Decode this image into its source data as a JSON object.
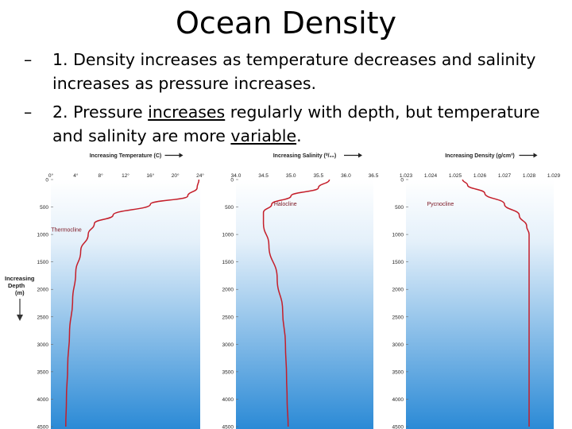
{
  "slide": {
    "title": "Ocean Density",
    "bullet1": {
      "dash": "–",
      "text": "1. Density increases as temperature decreases and salinity increases as pressure increases."
    },
    "bullet2": {
      "dash": "–",
      "part1": "2. Pressure ",
      "underline1": "increases",
      "part2": " regularly with depth, but temperature and salinity are more ",
      "underline2": "variable",
      "part3": "."
    }
  },
  "depth_axis": {
    "label_line1": "Increasing",
    "label_line2": "Depth",
    "label_line3": "(m)"
  },
  "colors": {
    "gradient_top": "#ffffff",
    "gradient_bottom": "#2b8ad6",
    "curve": "#c41e2a"
  },
  "chart_data": [
    {
      "type": "line",
      "title": "Increasing Temperature (C)",
      "x_ticks": [
        "0°",
        "4°",
        "8°",
        "12°",
        "16°",
        "20°",
        "24°"
      ],
      "xlim": [
        0,
        24
      ],
      "y_ticks": [
        "0",
        "500",
        "1000",
        "1500",
        "2000",
        "2500",
        "3000",
        "3500",
        "4000",
        "4500"
      ],
      "ylim": [
        0,
        4500
      ],
      "annotation": "Thermocline",
      "series": [
        {
          "x": [
            23.8,
            23.5,
            22,
            16,
            10,
            7,
            6,
            4.8,
            4,
            3.5,
            3,
            2.7,
            2.5,
            2.4
          ],
          "y": [
            0,
            150,
            300,
            450,
            650,
            800,
            1000,
            1300,
            1700,
            2200,
            2800,
            3400,
            4000,
            4500
          ]
        }
      ]
    },
    {
      "type": "line",
      "title": "Increasing Salinity (⁰/₀₀)",
      "x_ticks": [
        "34.0",
        "34.5",
        "35.0",
        "35.5",
        "36.0",
        "36.5"
      ],
      "xlim": [
        34.0,
        36.5
      ],
      "y_ticks": [
        "0",
        "500",
        "1000",
        "1500",
        "2000",
        "2500",
        "3000",
        "3500",
        "4000",
        "4500"
      ],
      "ylim": [
        0,
        4500
      ],
      "annotation": "Halocline",
      "series": [
        {
          "x": [
            35.7,
            35.5,
            35.0,
            34.65,
            34.5,
            34.5,
            34.6,
            34.75,
            34.85,
            34.9,
            34.92,
            34.93,
            34.95
          ],
          "y": [
            0,
            150,
            300,
            450,
            600,
            800,
            1200,
            1800,
            2400,
            3000,
            3600,
            4000,
            4500
          ]
        }
      ]
    },
    {
      "type": "line",
      "title": "Increasing Density (g/cm³)",
      "x_ticks": [
        "1.023",
        "1.024",
        "1.025",
        "1.026",
        "1.027",
        "1.028",
        "1.029"
      ],
      "xlim": [
        1.023,
        1.029
      ],
      "y_ticks": [
        "0",
        "500",
        "1000",
        "1500",
        "2000",
        "2500",
        "3000",
        "3500",
        "4000",
        "4500"
      ],
      "ylim": [
        0,
        4500
      ],
      "annotation": "Pycnocline",
      "series": [
        {
          "x": [
            1.0253,
            1.0255,
            1.0262,
            1.027,
            1.0276,
            1.0279,
            1.028,
            1.028,
            1.028,
            1.028
          ],
          "y": [
            0,
            100,
            250,
            450,
            650,
            850,
            1000,
            1500,
            3000,
            4500
          ]
        }
      ]
    }
  ]
}
